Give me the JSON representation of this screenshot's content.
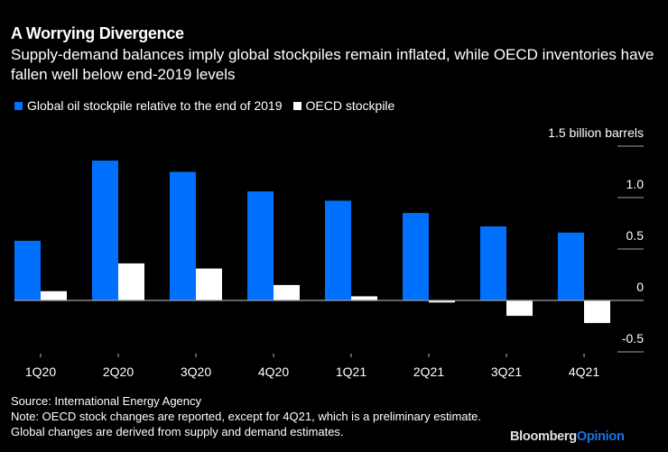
{
  "header": {
    "title": "A Worrying Divergence",
    "subtitle": "Supply-demand balances imply global stockpiles remain inflated, while OECD inventories have fallen well below end-2019 levels"
  },
  "footer": {
    "source": "Source: International Energy Agency",
    "note": "Note: OECD stock changes are reported, except for 4Q21, which is a preliminary estimate. Global changes are derived from supply and demand estimates.",
    "brand_part1": "Bloomberg",
    "brand_part2": "Opinion"
  },
  "colors": {
    "background": "#000000",
    "global": "#0070ff",
    "oecd": "#ffffff",
    "gridline": "#a0a0a0",
    "brand_accent": "#1a73e8"
  },
  "chart_data": {
    "type": "bar",
    "title": "A Worrying Divergence",
    "xlabel": "",
    "ylabel": "billion barrels",
    "ylim": [
      -0.5,
      1.5
    ],
    "yticks": [
      {
        "value": 1.5,
        "label": "1.5 billion barrels"
      },
      {
        "value": 1.0,
        "label": "1.0"
      },
      {
        "value": 0.5,
        "label": "0.5"
      },
      {
        "value": 0,
        "label": "0"
      },
      {
        "value": -0.5,
        "label": "-0.5"
      }
    ],
    "grid": false,
    "legend_position": "top-left",
    "categories": [
      "1Q20",
      "2Q20",
      "3Q20",
      "4Q20",
      "1Q21",
      "2Q21",
      "3Q21",
      "4Q21"
    ],
    "series": [
      {
        "name": "Global oil stockpile relative to the end of 2019",
        "color": "#0070ff",
        "values": [
          0.58,
          1.36,
          1.25,
          1.06,
          0.97,
          0.85,
          0.72,
          0.66
        ]
      },
      {
        "name": "OECD stockpile",
        "color": "#ffffff",
        "values": [
          0.09,
          0.36,
          0.31,
          0.15,
          0.04,
          -0.02,
          -0.15,
          -0.22
        ]
      }
    ]
  }
}
